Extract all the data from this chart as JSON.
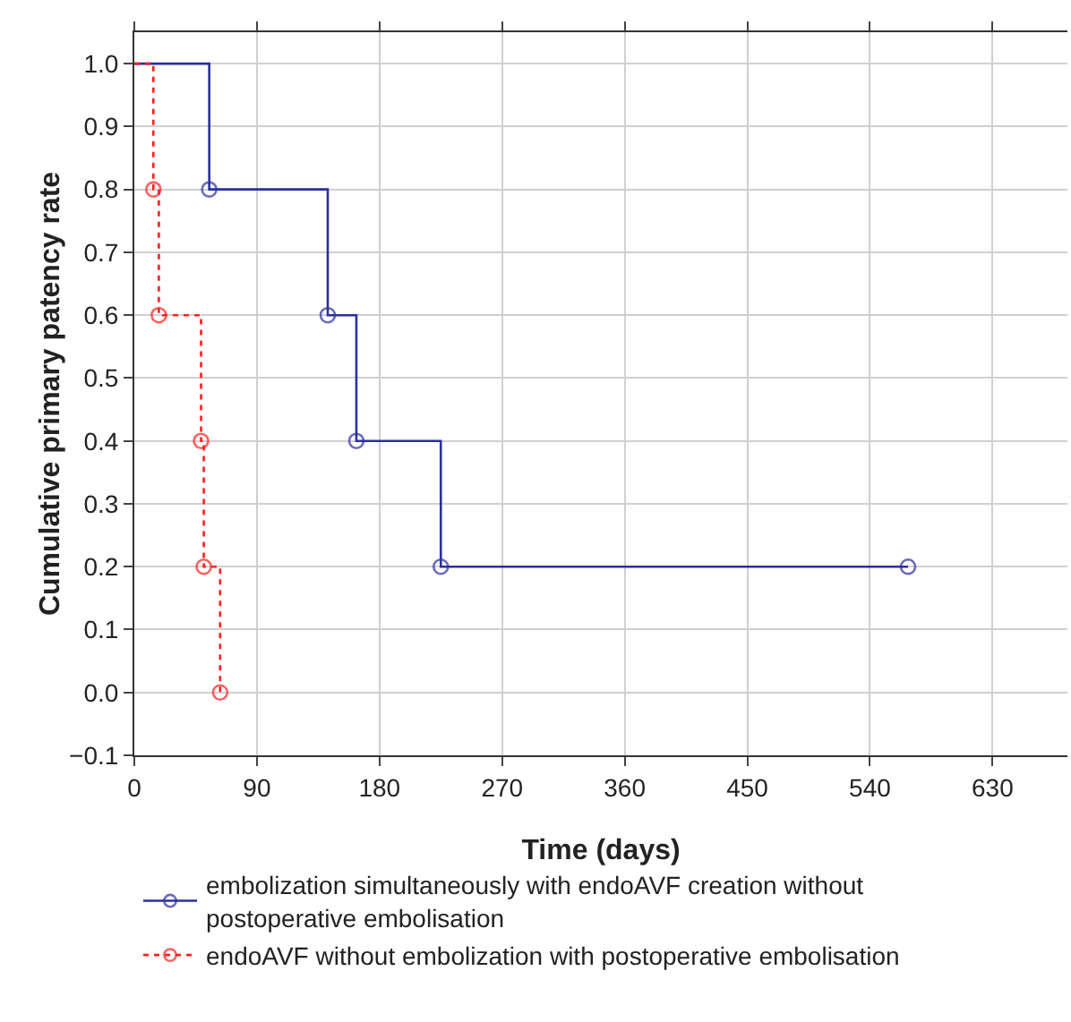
{
  "chart_data": {
    "type": "step",
    "xlabel": "Time (days)",
    "ylabel": "Cumulative primary patency rate",
    "series": [
      {
        "name": "embolization simultaneously with endoAVF creation without postoperative embolisation",
        "color": "#2b2f9e",
        "line_style": "solid",
        "x": [
          0,
          55,
          142,
          163,
          225,
          568
        ],
        "values": [
          1,
          0.8,
          0.6,
          0.4,
          0.2,
          0.2
        ]
      },
      {
        "name": "endoAVF without embolization with postoperative embolisation",
        "color": "#ff2020",
        "line_style": "dotted",
        "x": [
          0,
          14,
          18,
          49,
          51,
          63
        ],
        "values": [
          1,
          0.8,
          0.6,
          0.4,
          0.2,
          0
        ]
      }
    ],
    "marker": "circle",
    "xlim": [
      0,
      685
    ],
    "ylim": [
      -0.1,
      1.05
    ],
    "xticks": [
      0,
      90,
      180,
      270,
      360,
      450,
      540,
      630
    ],
    "yticks": [
      {
        "value": -0.1,
        "label": "−0.1"
      },
      {
        "value": 0,
        "label": "0.0"
      },
      {
        "value": 0.1,
        "label": "0.1"
      },
      {
        "value": 0.2,
        "label": "0.2"
      },
      {
        "value": 0.3,
        "label": "0.3"
      },
      {
        "value": 0.4,
        "label": "0.4"
      },
      {
        "value": 0.5,
        "label": "0.5"
      },
      {
        "value": 0.6,
        "label": "0.6"
      },
      {
        "value": 0.7,
        "label": "0.7"
      },
      {
        "value": 0.8,
        "label": "0.8"
      },
      {
        "value": 0.9,
        "label": "0.9"
      },
      {
        "value": 1,
        "label": "1.0"
      }
    ],
    "grid": true,
    "legend": "bottom"
  }
}
